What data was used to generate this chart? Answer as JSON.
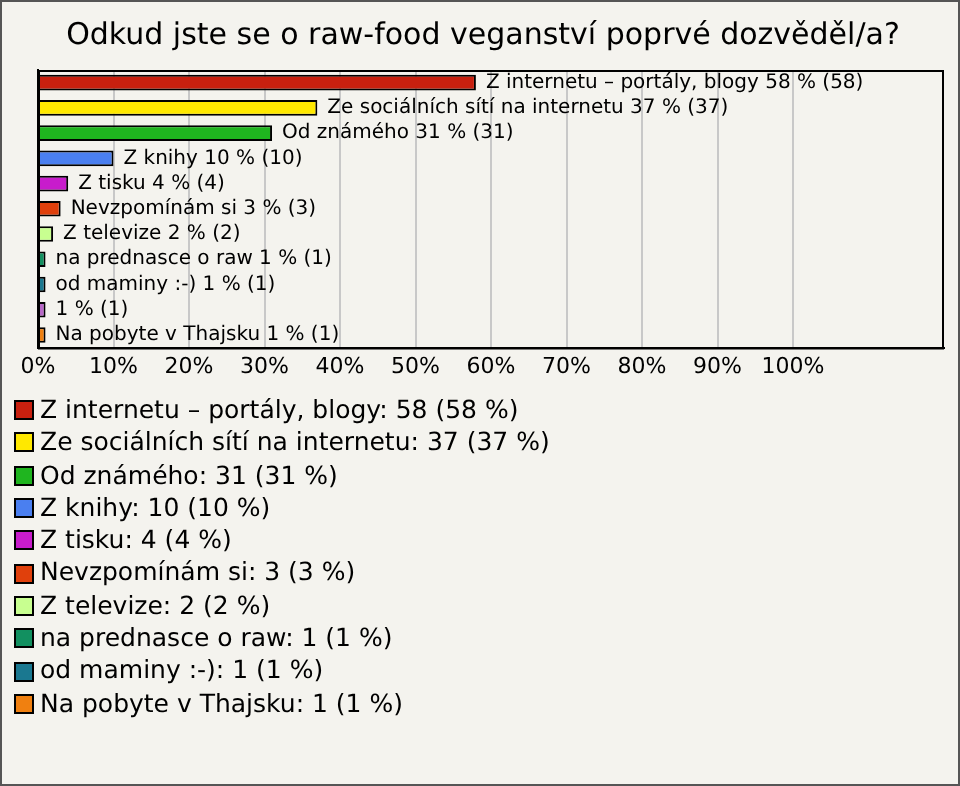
{
  "chart_data": {
    "type": "bar",
    "orientation": "horizontal",
    "stacked": true,
    "title": "Odkud jste se o raw-food veganství poprvé dozvěděl/a?",
    "categories": [
      null,
      null,
      null,
      null,
      null,
      null,
      null,
      null,
      null,
      null,
      null
    ],
    "xlim": [
      0,
      120
    ],
    "xticks": [
      {
        "value": 0,
        "label": "0%"
      },
      {
        "value": 10,
        "label": "10%"
      },
      {
        "value": 20,
        "label": "20%"
      },
      {
        "value": 30,
        "label": "30%"
      },
      {
        "value": 40,
        "label": "40%"
      },
      {
        "value": 50,
        "label": "50%"
      },
      {
        "value": 60,
        "label": "60%"
      },
      {
        "value": 70,
        "label": "70%"
      },
      {
        "value": 80,
        "label": "80%"
      },
      {
        "value": 90,
        "label": "90%"
      },
      {
        "value": 100,
        "label": "100%"
      }
    ],
    "grid": "x",
    "legend": "bottom",
    "series": [
      {
        "name": "Z internetu – portály, blogy: 58 (58 %)",
        "color": "#c8200f",
        "values": [
          58,
          null,
          null,
          null,
          null,
          null,
          null,
          null,
          null,
          null,
          null
        ],
        "value_labels": [
          "Z internetu – portály, blogy 58 % (58)",
          null,
          null,
          null,
          null,
          null,
          null,
          null,
          null,
          null,
          null
        ]
      },
      {
        "name": "Ze sociálních sítí na internetu: 37 (37 %)",
        "color": "#ffe800",
        "values": [
          null,
          37,
          null,
          null,
          null,
          null,
          null,
          null,
          null,
          null,
          null
        ],
        "value_labels": [
          null,
          "Ze sociálních sítí na internetu 37 % (37)",
          null,
          null,
          null,
          null,
          null,
          null,
          null,
          null,
          null
        ]
      },
      {
        "name": "Od známého: 31 (31 %)",
        "color": "#1fb51f",
        "values": [
          null,
          null,
          31,
          null,
          null,
          null,
          null,
          null,
          null,
          null,
          null
        ],
        "value_labels": [
          null,
          null,
          "Od známého 31 % (31)",
          null,
          null,
          null,
          null,
          null,
          null,
          null,
          null
        ]
      },
      {
        "name": "Z knihy: 10 (10 %)",
        "color": "#4a7ff0",
        "values": [
          null,
          null,
          null,
          10,
          null,
          null,
          null,
          null,
          null,
          null,
          null
        ],
        "value_labels": [
          null,
          null,
          null,
          "Z knihy 10 % (10)",
          null,
          null,
          null,
          null,
          null,
          null,
          null
        ]
      },
      {
        "name": "Z tisku: 4 (4 %)",
        "color": "#c81ccc",
        "values": [
          null,
          null,
          null,
          null,
          4,
          null,
          null,
          null,
          null,
          null,
          null
        ],
        "value_labels": [
          null,
          null,
          null,
          null,
          "Z tisku 4 % (4)",
          null,
          null,
          null,
          null,
          null,
          null
        ]
      },
      {
        "name": "Nevzpomínám si: 3 (3 %)",
        "color": "#e0400c",
        "values": [
          null,
          null,
          null,
          null,
          null,
          3,
          null,
          null,
          null,
          null,
          null
        ],
        "value_labels": [
          null,
          null,
          null,
          null,
          null,
          "Nevzpomínám si 3 % (3)",
          null,
          null,
          null,
          null,
          null
        ]
      },
      {
        "name": "Z televize: 2 (2 %)",
        "color": "#c8ff90",
        "values": [
          null,
          null,
          null,
          null,
          null,
          null,
          2,
          null,
          null,
          null,
          null
        ],
        "value_labels": [
          null,
          null,
          null,
          null,
          null,
          null,
          "Z televize 2 % (2)",
          null,
          null,
          null,
          null
        ]
      },
      {
        "name": "na prednasce o raw: 1 (1 %)",
        "color": "#129060",
        "values": [
          null,
          null,
          null,
          null,
          null,
          null,
          null,
          1,
          null,
          null,
          null
        ],
        "value_labels": [
          null,
          null,
          null,
          null,
          null,
          null,
          null,
          "na prednasce o raw 1 % (1)",
          null,
          null,
          null
        ]
      },
      {
        "name": "od maminy :-): 1 (1 %)",
        "color": "#1a7890",
        "values": [
          null,
          null,
          null,
          null,
          null,
          null,
          null,
          null,
          1,
          null,
          null
        ],
        "value_labels": [
          null,
          null,
          null,
          null,
          null,
          null,
          null,
          null,
          "od maminy :-) 1 % (1)",
          null,
          null
        ]
      },
      {
        "color": "#b868c8",
        "values": [
          null,
          null,
          null,
          null,
          null,
          null,
          null,
          null,
          null,
          1,
          null
        ],
        "value_labels": [
          null,
          null,
          null,
          null,
          null,
          null,
          null,
          null,
          null,
          "1 % (1)",
          null
        ]
      },
      {
        "name": "Na pobyte v Thajsku: 1 (1 %)",
        "color": "#f08010",
        "values": [
          null,
          null,
          null,
          null,
          null,
          null,
          null,
          null,
          null,
          null,
          1
        ],
        "value_labels": [
          null,
          null,
          null,
          null,
          null,
          null,
          null,
          null,
          null,
          null,
          "Na pobyte v Thajsku 1 % (1)"
        ]
      }
    ]
  }
}
